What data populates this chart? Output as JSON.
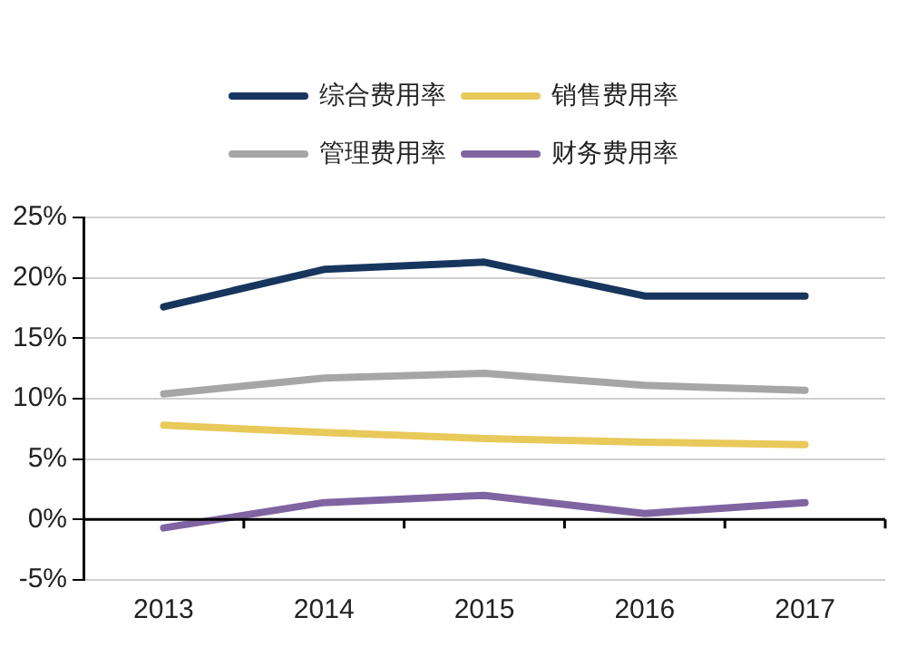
{
  "chart_data": {
    "type": "line",
    "categories": [
      "2013",
      "2014",
      "2015",
      "2016",
      "2017"
    ],
    "series": [
      {
        "name": "综合费用率",
        "color": "#17365d",
        "values": [
          17.6,
          20.7,
          21.3,
          18.5,
          18.5
        ]
      },
      {
        "name": "销售费用率",
        "color": "#e8c95a",
        "values": [
          7.8,
          7.2,
          6.7,
          6.4,
          6.2
        ]
      },
      {
        "name": "管理费用率",
        "color": "#a6a6a6",
        "values": [
          10.4,
          11.7,
          12.1,
          11.1,
          10.7
        ]
      },
      {
        "name": "财务费用率",
        "color": "#8064a2",
        "values": [
          -0.7,
          1.4,
          2.0,
          0.5,
          1.4
        ]
      }
    ],
    "ylim": [
      -5,
      25
    ],
    "yticks": [
      {
        "value": -5,
        "label": "-5%"
      },
      {
        "value": 0,
        "label": "0%"
      },
      {
        "value": 5,
        "label": "5%"
      },
      {
        "value": 10,
        "label": "10%"
      },
      {
        "value": 15,
        "label": "15%"
      },
      {
        "value": 20,
        "label": "20%"
      },
      {
        "value": 25,
        "label": "25%"
      }
    ],
    "grid": "y",
    "legend": "top",
    "marker": "none",
    "line_style": "solid"
  }
}
